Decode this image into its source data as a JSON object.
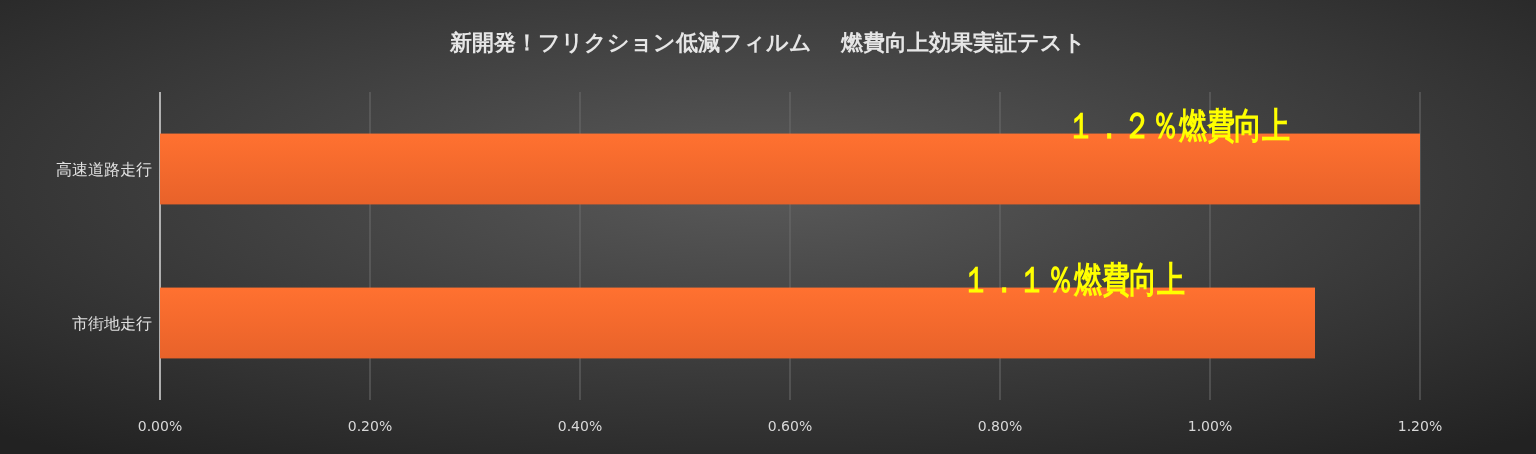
{
  "chart_data": {
    "type": "bar",
    "orientation": "horizontal",
    "title": "新開発！フリクション低減フィルム　 燃費向上効果実証テスト",
    "categories": [
      "高速道路走行",
      "市街地走行"
    ],
    "values": [
      1.2,
      1.1
    ],
    "color": "#e8622a",
    "xlim": [
      0,
      1.2
    ],
    "xticks": [
      {
        "value": 0,
        "label": "0.00%"
      },
      {
        "value": 0.2,
        "label": "0.20%"
      },
      {
        "value": 0.4,
        "label": "0.40%"
      },
      {
        "value": 0.6,
        "label": "0.60%"
      },
      {
        "value": 0.8,
        "label": "0.80%"
      },
      {
        "value": 1.0,
        "label": "1.00%"
      },
      {
        "value": 1.2,
        "label": "1.20%"
      }
    ],
    "grid": "x",
    "annotations": [
      "１．２％燃費向上",
      "１．１％燃費向上"
    ]
  }
}
